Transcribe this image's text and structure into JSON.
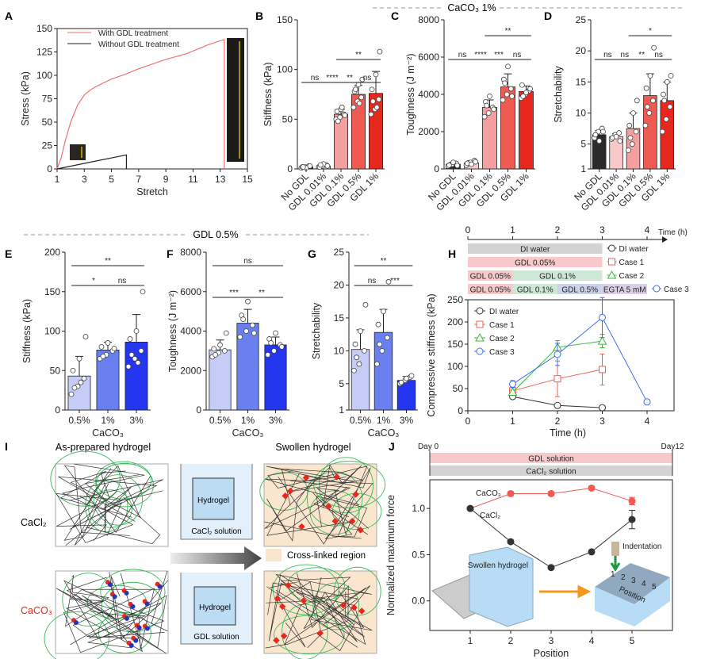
{
  "section_headers": {
    "top": "CaCO₃ 1%",
    "middle": "GDL 0.5%"
  },
  "panel_labels": [
    "A",
    "B",
    "C",
    "D",
    "E",
    "F",
    "G",
    "H",
    "I",
    "J"
  ],
  "chart_data": [
    {
      "id": "A",
      "type": "line",
      "xlabel": "Stretch",
      "ylabel": "Stress (kPa)",
      "xlim": [
        1,
        15
      ],
      "ylim": [
        0,
        150
      ],
      "xticks": [
        1,
        3,
        5,
        7,
        9,
        11,
        13,
        15
      ],
      "yticks": [
        0,
        25,
        50,
        75,
        100,
        125,
        150
      ],
      "legend_position": "top-left",
      "series": [
        {
          "name": "With GDL treatment",
          "color": "#f07070",
          "x": [
            1,
            1.3,
            1.6,
            2,
            2.5,
            3,
            3.5,
            4,
            5,
            6,
            7,
            8,
            9,
            10,
            10.5,
            11,
            12,
            13,
            13.3,
            13.3
          ],
          "y": [
            0,
            12,
            30,
            50,
            68,
            79,
            85,
            89,
            96,
            101,
            107,
            112,
            117,
            121,
            123,
            126,
            132,
            137,
            138,
            0
          ]
        },
        {
          "name": "Without GDL treatment",
          "color": "#222222",
          "x": [
            1,
            6.1,
            6.1
          ],
          "y": [
            0,
            15,
            0
          ]
        }
      ]
    },
    {
      "id": "B",
      "type": "bar",
      "ylabel": "Stiffness (kPa)",
      "ylim": [
        0,
        150
      ],
      "yticks": [
        0,
        50,
        100,
        150
      ],
      "categories": [
        "No GDL",
        "GDL 0.01%",
        "GDL 0.1%",
        "GDL 0.5%",
        "GDL 1%"
      ],
      "values": [
        2,
        3,
        55,
        75,
        76
      ],
      "errors": [
        1,
        1.5,
        5,
        9,
        22
      ],
      "colors": [
        "#2b2b2b",
        "#f9c9c9",
        "#f5a0a0",
        "#ef5b52",
        "#e8281c"
      ],
      "points": [
        [
          1,
          2,
          3,
          2,
          1,
          3,
          2
        ],
        [
          2,
          3,
          4,
          2,
          5,
          3,
          4
        ],
        [
          50,
          52,
          55,
          58,
          60,
          54,
          48,
          62
        ],
        [
          62,
          68,
          72,
          78,
          85,
          90,
          80,
          66
        ],
        [
          55,
          60,
          70,
          80,
          95,
          118,
          68,
          62
        ]
      ],
      "significance": [
        {
          "pair": [
            1,
            2
          ],
          "label": "ns"
        },
        {
          "pair": [
            2,
            3
          ],
          "label": "****"
        },
        {
          "pair": [
            3,
            4
          ],
          "label": "**"
        },
        {
          "pair": [
            4,
            5
          ],
          "label": "ns"
        },
        {
          "pair": [
            3,
            5
          ],
          "label": "**"
        }
      ]
    },
    {
      "id": "C",
      "type": "bar",
      "ylabel": "Toughness (J m⁻²)",
      "ylim": [
        0,
        8000
      ],
      "yticks": [
        0,
        2000,
        4000,
        6000,
        8000
      ],
      "categories": [
        "No GDL",
        "GDL 0.01%",
        "GDL 0.1%",
        "GDL 0.5%",
        "GDL 1%"
      ],
      "values": [
        250,
        320,
        3300,
        4400,
        4150
      ],
      "errors": [
        100,
        120,
        400,
        700,
        300
      ],
      "colors": [
        "#2b2b2b",
        "#f9c9c9",
        "#f5a0a0",
        "#ef5b52",
        "#e8281c"
      ],
      "points": [
        [
          150,
          250,
          300,
          200,
          350,
          180
        ],
        [
          200,
          350,
          450,
          300,
          250,
          380
        ],
        [
          2800,
          3000,
          3300,
          3600,
          3900,
          3200,
          3400
        ],
        [
          3700,
          4000,
          4300,
          4800,
          5500,
          3900,
          4600
        ],
        [
          3800,
          4000,
          4200,
          4500,
          4100,
          4300,
          3900
        ]
      ],
      "significance": [
        {
          "pair": [
            1,
            2
          ],
          "label": "ns"
        },
        {
          "pair": [
            2,
            3
          ],
          "label": "****"
        },
        {
          "pair": [
            3,
            4
          ],
          "label": "***"
        },
        {
          "pair": [
            4,
            5
          ],
          "label": "ns"
        },
        {
          "pair": [
            3,
            5
          ],
          "label": "**"
        }
      ]
    },
    {
      "id": "D",
      "type": "bar",
      "ylabel": "Stretchability",
      "ylim": [
        1,
        25
      ],
      "yticks": [
        1,
        5,
        10,
        15,
        20,
        25
      ],
      "categories": [
        "No GDL",
        "GDL 0.01%",
        "GDL 0.1%",
        "GDL 0.5%",
        "GDL 1%"
      ],
      "values": [
        6.5,
        6.2,
        7.5,
        12.8,
        12
      ],
      "errors": [
        0.7,
        0.5,
        2.5,
        3.5,
        3
      ],
      "colors": [
        "#2b2b2b",
        "#f9c9c9",
        "#f5a0a0",
        "#ef5b52",
        "#e8281c"
      ],
      "points": [
        [
          6,
          7,
          7.5,
          6.5,
          5.5,
          7
        ],
        [
          5.8,
          6.5,
          6.8,
          6,
          6.2,
          5.5
        ],
        [
          4,
          5,
          7,
          8,
          10,
          12,
          6
        ],
        [
          8,
          10,
          12,
          14,
          16,
          20.5,
          11
        ],
        [
          7,
          9,
          11,
          13,
          15,
          16,
          12
        ]
      ],
      "significance": [
        {
          "pair": [
            1,
            2
          ],
          "label": "ns"
        },
        {
          "pair": [
            2,
            3
          ],
          "label": "ns"
        },
        {
          "pair": [
            3,
            4
          ],
          "label": "**"
        },
        {
          "pair": [
            4,
            5
          ],
          "label": "ns"
        },
        {
          "pair": [
            3,
            5
          ],
          "label": "*"
        }
      ]
    },
    {
      "id": "E",
      "type": "bar",
      "ylabel": "Stiffness (kPa)",
      "xlabel": "CaCO₃",
      "ylim": [
        0,
        200
      ],
      "yticks": [
        0,
        50,
        100,
        150,
        200
      ],
      "categories": [
        "0.5%",
        "1%",
        "3%"
      ],
      "values": [
        43,
        76,
        86
      ],
      "errors": [
        25,
        10,
        35
      ],
      "colors": [
        "#c5cdf7",
        "#6b80f0",
        "#2436f0"
      ],
      "points": [
        [
          20,
          30,
          40,
          50,
          65,
          93,
          28,
          35
        ],
        [
          65,
          70,
          75,
          80,
          85,
          78,
          68
        ],
        [
          55,
          65,
          75,
          90,
          100,
          150,
          70,
          60
        ]
      ],
      "significance": [
        {
          "pair": [
            1,
            2
          ],
          "label": "*"
        },
        {
          "pair": [
            2,
            3
          ],
          "label": "ns"
        },
        {
          "pair": [
            1,
            3
          ],
          "label": "**"
        }
      ]
    },
    {
      "id": "F",
      "type": "bar",
      "ylabel": "Toughness (J m⁻²)",
      "xlabel": "CaCO₃",
      "ylim": [
        0,
        8000
      ],
      "yticks": [
        0,
        2000,
        4000,
        6000,
        8000
      ],
      "categories": [
        "0.5%",
        "1%",
        "3%"
      ],
      "values": [
        3050,
        4400,
        3300
      ],
      "errors": [
        500,
        700,
        400
      ],
      "colors": [
        "#c5cdf7",
        "#6b80f0",
        "#2436f0"
      ],
      "points": [
        [
          2700,
          2900,
          3000,
          3100,
          3300,
          3900,
          2800
        ],
        [
          3700,
          4000,
          4300,
          4800,
          5500,
          3900,
          4600
        ],
        [
          2800,
          3000,
          3300,
          3600,
          3900,
          3200,
          3400
        ]
      ],
      "significance": [
        {
          "pair": [
            1,
            2
          ],
          "label": "***"
        },
        {
          "pair": [
            2,
            3
          ],
          "label": "**"
        },
        {
          "pair": [
            1,
            3
          ],
          "label": "ns"
        }
      ]
    },
    {
      "id": "G",
      "type": "bar",
      "ylabel": "Stretchability",
      "xlabel": "CaCO₃",
      "ylim": [
        1,
        25
      ],
      "yticks": [
        1,
        5,
        10,
        15,
        20,
        25
      ],
      "categories": [
        "0.5%",
        "1%",
        "3%"
      ],
      "values": [
        10.2,
        12.8,
        5.5
      ],
      "errors": [
        3,
        3.5,
        0.6
      ],
      "colors": [
        "#c5cdf7",
        "#6b80f0",
        "#2436f0"
      ],
      "points": [
        [
          7,
          8,
          10,
          11,
          13,
          17,
          9
        ],
        [
          8,
          10,
          12,
          14,
          16,
          20.5,
          11
        ],
        [
          5,
          5.5,
          6,
          5.2,
          5.8,
          6.2
        ]
      ],
      "significance": [
        {
          "pair": [
            1,
            2
          ],
          "label": "ns"
        },
        {
          "pair": [
            2,
            3
          ],
          "label": "***"
        },
        {
          "pair": [
            1,
            3
          ],
          "label": "**"
        }
      ]
    },
    {
      "id": "H",
      "type": "line",
      "xlabel": "Time (h)",
      "ylabel": "Compressive stiffness (kPa)",
      "xlim": [
        0,
        4.6
      ],
      "ylim": [
        0,
        250
      ],
      "xticks": [
        0,
        1,
        2,
        3,
        4
      ],
      "yticks": [
        0,
        50,
        100,
        150,
        200,
        250
      ],
      "timeline": {
        "axis_label": "Time (h)",
        "ticks": [
          0,
          1,
          2,
          3,
          4
        ],
        "rows": [
          {
            "legend": "DI water",
            "segments": [
              {
                "label": "DI water",
                "from": 0,
                "to": 3,
                "color": "#d3d3d3"
              }
            ]
          },
          {
            "legend": "Case 1",
            "segments": [
              {
                "label": "GDL 0.05%",
                "from": 0,
                "to": 3,
                "color": "#f8c9cb"
              }
            ]
          },
          {
            "legend": "Case 2",
            "segments": [
              {
                "label": "GDL 0.05%",
                "from": 0,
                "to": 1,
                "color": "#f8c9cb"
              },
              {
                "label": "GDL 0.1%",
                "from": 1,
                "to": 3,
                "color": "#cde9d6"
              }
            ]
          },
          {
            "legend": "Case 3",
            "segments": [
              {
                "label": "GDL 0.05%",
                "from": 0,
                "to": 1,
                "color": "#f8c9cb"
              },
              {
                "label": "GDL 0.1%",
                "from": 1,
                "to": 2,
                "color": "#cde9d6"
              },
              {
                "label": "GDL 0.5%",
                "from": 2,
                "to": 3,
                "color": "#ccd2ea"
              },
              {
                "label": "EGTA 5 mM",
                "from": 3,
                "to": 4,
                "color": "#dcd0e8"
              }
            ]
          }
        ]
      },
      "legend_position": "top-left",
      "series": [
        {
          "name": "DI water",
          "color": "#333333",
          "marker": "circle",
          "x": [
            1,
            2,
            3
          ],
          "y": [
            32,
            12,
            7
          ],
          "errors": [
            2,
            2,
            1
          ]
        },
        {
          "name": "Case 1",
          "color": "#f06050",
          "marker": "square",
          "x": [
            1,
            2,
            3
          ],
          "y": [
            45,
            72,
            93
          ],
          "errors": [
            5,
            40,
            35
          ]
        },
        {
          "name": "Case 2",
          "color": "#3cb83c",
          "marker": "triangle",
          "x": [
            1,
            2,
            3
          ],
          "y": [
            42,
            143,
            157
          ],
          "errors": [
            5,
            15,
            15
          ]
        },
        {
          "name": "Case 3",
          "color": "#3b6cf0",
          "marker": "circle",
          "x": [
            1,
            2,
            3,
            4
          ],
          "y": [
            60,
            127,
            210,
            20
          ],
          "errors": [
            8,
            25,
            45,
            1
          ]
        }
      ]
    },
    {
      "id": "J",
      "type": "line",
      "xlabel": "Position",
      "ylabel": "Normalized maximum force",
      "xlim": [
        0,
        6
      ],
      "ylim": [
        -0.32,
        1.31
      ],
      "xticks": [
        1,
        2,
        3,
        4,
        5
      ],
      "yticks": [
        0.0,
        0.5,
        1.0
      ],
      "timeline": {
        "start": "Day 0",
        "end": "Day12",
        "bars": [
          {
            "label": "GDL solution",
            "color": "#f8c9cb"
          },
          {
            "label": "CaCl₂ solution",
            "color": "#d3d3d3"
          }
        ]
      },
      "series": [
        {
          "name": "CaCO₃",
          "color": "#ef5b52",
          "x": [
            1,
            2,
            3,
            4,
            5
          ],
          "y": [
            1.0,
            1.16,
            1.16,
            1.22,
            1.08
          ],
          "errors": [
            0,
            0.02,
            0.02,
            0.02,
            0.04
          ]
        },
        {
          "name": "CaCl₂",
          "color": "#333333",
          "x": [
            1,
            2,
            3,
            4,
            5
          ],
          "y": [
            1.0,
            0.64,
            0.36,
            0.53,
            0.88
          ],
          "errors": [
            0,
            0.01,
            0.01,
            0.01,
            0.1
          ]
        }
      ],
      "annotations": {
        "indentation": "Indentation",
        "swollen": "Swollen hydrogel",
        "position": "Position",
        "positions": [
          "1",
          "2",
          "3",
          "4",
          "5"
        ]
      }
    }
  ],
  "panel_I": {
    "col_left": "As-prepared hydrogel",
    "col_right": "Swollen hydrogel",
    "row_top": "CaCl₂",
    "row_bottom": "CaCO₃",
    "beaker_top": {
      "inner": "Hydrogel",
      "solution": "CaCl₂ solution"
    },
    "beaker_bottom": {
      "inner": "Hydrogel",
      "solution": "GDL solution"
    },
    "legend": "Cross-linked region",
    "colors": {
      "crosslinked": "#fae6cf",
      "top_row_label": "#222222",
      "bottom_row_label": "#e8281c"
    }
  }
}
